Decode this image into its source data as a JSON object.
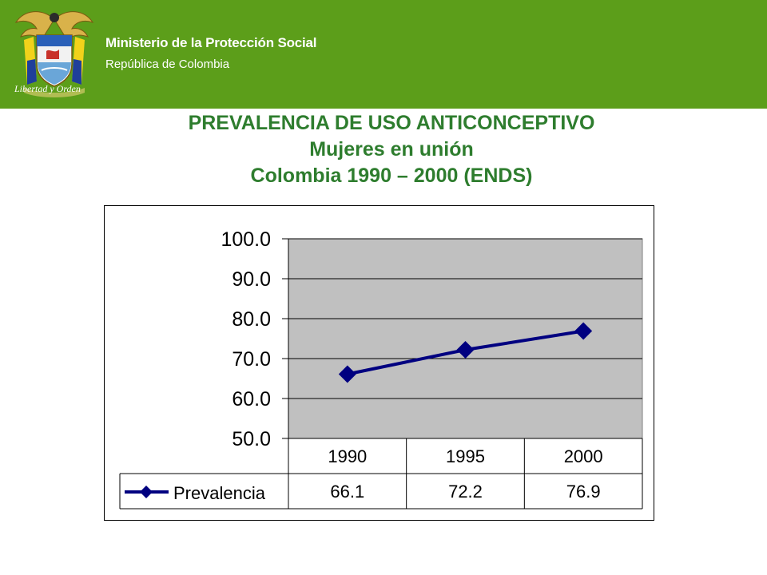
{
  "header": {
    "ministry": "Ministerio de la Protección Social",
    "republic": "República de Colombia",
    "motto": "Libertad y Orden",
    "band_color": "#5c9e1a"
  },
  "title": {
    "line1": "PREVALENCIA DE USO ANTICONCEPTIVO",
    "line2": "Mujeres en unión",
    "line3": "Colombia 1990 – 2000 (ENDS)",
    "color": "#2e7d2e"
  },
  "chart_data": {
    "type": "line",
    "categories": [
      "1990",
      "1995",
      "2000"
    ],
    "series": [
      {
        "name": "Prevalencia",
        "values": [
          66.1,
          72.2,
          76.9
        ],
        "color": "#000080"
      }
    ],
    "value_labels": [
      "66.1",
      "72.2",
      "76.9"
    ],
    "yticks": [
      "100.0",
      "90.0",
      "80.0",
      "70.0",
      "60.0",
      "50.0"
    ],
    "ylim": [
      50,
      100
    ],
    "ytick_step": 10,
    "grid": true,
    "plot_background": "#c0c0c0",
    "data_table": true
  }
}
